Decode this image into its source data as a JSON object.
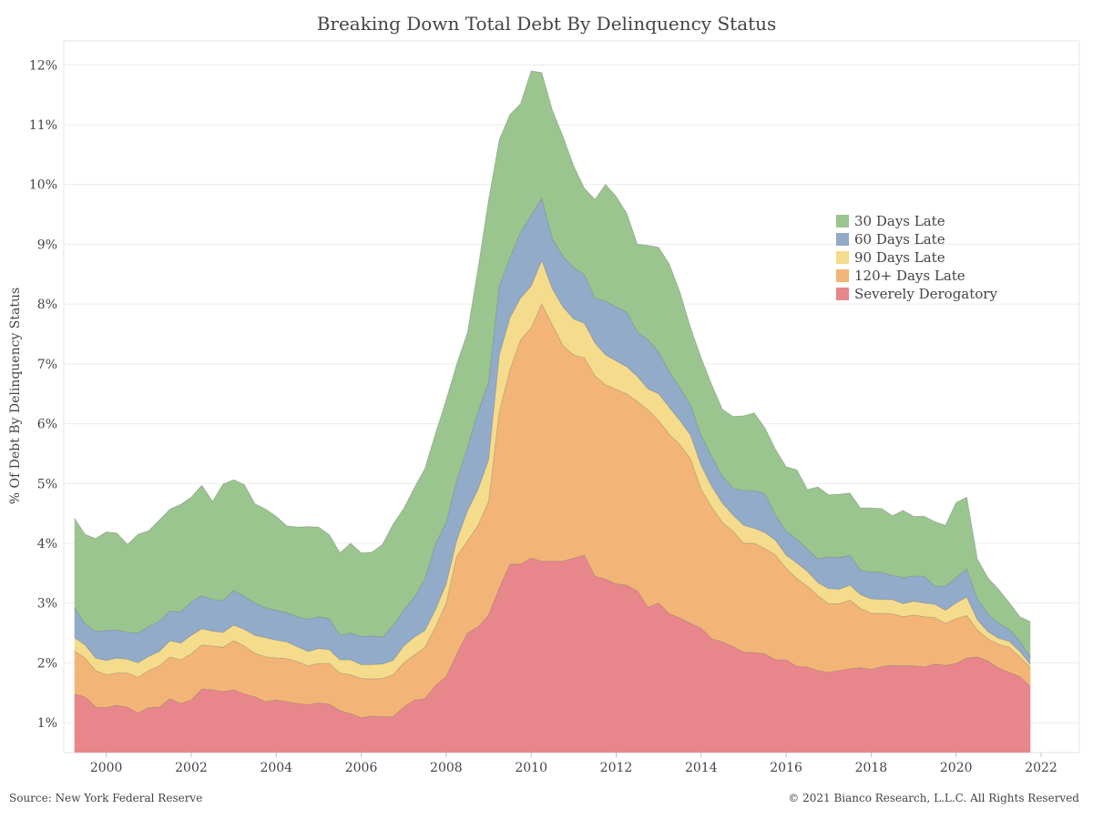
{
  "title": "Breaking Down Total Debt By Delinquency Status",
  "source": "Source: New York Federal Reserve",
  "copyright": "© 2021 Bianco Research, L.L.C. All Rights Reserved",
  "chart_data": {
    "type": "area",
    "stacked": true,
    "title": "Breaking Down Total Debt By Delinquency Status",
    "xlabel": "",
    "ylabel": "% Of Debt By Delinquency Status",
    "xlim": [
      1999.0,
      2022.9
    ],
    "ylim": [
      0.5,
      12.4
    ],
    "x_ticks": [
      "2000",
      "2002",
      "2004",
      "2006",
      "2008",
      "2010",
      "2012",
      "2014",
      "2016",
      "2018",
      "2020",
      "2022"
    ],
    "y_ticks": [
      "1%",
      "2%",
      "3%",
      "4%",
      "5%",
      "6%",
      "7%",
      "8%",
      "9%",
      "10%",
      "11%",
      "12%"
    ],
    "grid": true,
    "legend_position": "center-right",
    "x": [
      1999.25,
      1999.5,
      1999.75,
      2000.0,
      2000.25,
      2000.5,
      2000.75,
      2001.0,
      2001.25,
      2001.5,
      2001.75,
      2002.0,
      2002.25,
      2002.5,
      2002.75,
      2003.0,
      2003.25,
      2003.5,
      2003.75,
      2004.0,
      2004.25,
      2004.5,
      2004.75,
      2005.0,
      2005.25,
      2005.5,
      2005.75,
      2006.0,
      2006.25,
      2006.5,
      2006.75,
      2007.0,
      2007.25,
      2007.5,
      2007.75,
      2008.0,
      2008.25,
      2008.5,
      2008.75,
      2009.0,
      2009.25,
      2009.5,
      2009.75,
      2010.0,
      2010.25,
      2010.5,
      2010.75,
      2011.0,
      2011.25,
      2011.5,
      2011.75,
      2012.0,
      2012.25,
      2012.5,
      2012.75,
      2013.0,
      2013.25,
      2013.5,
      2013.75,
      2014.0,
      2014.25,
      2014.5,
      2014.75,
      2015.0,
      2015.25,
      2015.5,
      2015.75,
      2016.0,
      2016.25,
      2016.5,
      2016.75,
      2017.0,
      2017.25,
      2017.5,
      2017.75,
      2018.0,
      2018.25,
      2018.5,
      2018.75,
      2019.0,
      2019.25,
      2019.5,
      2019.75,
      2020.0,
      2020.25,
      2020.5,
      2020.75,
      2021.0,
      2021.25,
      2021.5,
      2021.75
    ],
    "series": [
      {
        "name": "Severely Derogatory",
        "color": "#e8878b",
        "values": [
          1.48,
          1.43,
          1.26,
          1.25,
          1.29,
          1.26,
          1.16,
          1.25,
          1.26,
          1.4,
          1.32,
          1.38,
          1.56,
          1.55,
          1.52,
          1.55,
          1.48,
          1.43,
          1.35,
          1.38,
          1.35,
          1.32,
          1.3,
          1.33,
          1.31,
          1.2,
          1.15,
          1.08,
          1.11,
          1.1,
          1.1,
          1.26,
          1.38,
          1.4,
          1.62,
          1.77,
          2.15,
          2.5,
          2.6,
          2.8,
          3.25,
          3.65,
          3.65,
          3.75,
          3.7,
          3.7,
          3.7,
          3.75,
          3.8,
          3.45,
          3.4,
          3.32,
          3.3,
          3.2,
          2.93,
          3.0,
          2.82,
          2.75,
          2.66,
          2.58,
          2.4,
          2.35,
          2.27,
          2.18,
          2.17,
          2.15,
          2.05,
          2.05,
          1.94,
          1.93,
          1.87,
          1.84,
          1.87,
          1.9,
          1.92,
          1.89,
          1.94,
          1.96,
          1.95,
          1.95,
          1.93,
          1.98,
          1.96,
          1.99,
          2.08,
          2.1,
          2.03,
          1.91,
          1.84,
          1.77,
          1.6
        ]
      },
      {
        "name": "120+ Days Late",
        "color": "#f3b577",
        "values": [
          0.72,
          0.65,
          0.61,
          0.55,
          0.54,
          0.57,
          0.6,
          0.62,
          0.69,
          0.7,
          0.73,
          0.77,
          0.74,
          0.73,
          0.74,
          0.82,
          0.8,
          0.73,
          0.75,
          0.7,
          0.72,
          0.7,
          0.65,
          0.66,
          0.68,
          0.63,
          0.65,
          0.66,
          0.62,
          0.64,
          0.7,
          0.74,
          0.75,
          0.86,
          0.98,
          1.23,
          1.63,
          1.54,
          1.7,
          1.9,
          2.95,
          3.25,
          3.75,
          3.85,
          4.3,
          3.95,
          3.6,
          3.4,
          3.3,
          3.35,
          3.25,
          3.25,
          3.2,
          3.17,
          3.3,
          3.05,
          3.0,
          2.9,
          2.75,
          2.32,
          2.2,
          2.0,
          1.93,
          1.82,
          1.83,
          1.76,
          1.75,
          1.53,
          1.47,
          1.35,
          1.25,
          1.15,
          1.12,
          1.15,
          0.99,
          0.94,
          0.89,
          0.86,
          0.82,
          0.85,
          0.84,
          0.78,
          0.7,
          0.75,
          0.71,
          0.45,
          0.37,
          0.4,
          0.42,
          0.33,
          0.32
        ]
      },
      {
        "name": "90 Days Late",
        "color": "#f5dc8c",
        "values": [
          0.22,
          0.22,
          0.21,
          0.24,
          0.25,
          0.23,
          0.24,
          0.24,
          0.24,
          0.27,
          0.28,
          0.31,
          0.27,
          0.25,
          0.25,
          0.26,
          0.28,
          0.3,
          0.32,
          0.3,
          0.28,
          0.25,
          0.24,
          0.25,
          0.23,
          0.22,
          0.25,
          0.23,
          0.24,
          0.24,
          0.24,
          0.28,
          0.3,
          0.28,
          0.29,
          0.32,
          0.27,
          0.5,
          0.6,
          0.7,
          0.95,
          0.87,
          0.7,
          0.7,
          0.73,
          0.6,
          0.65,
          0.6,
          0.58,
          0.55,
          0.5,
          0.48,
          0.45,
          0.42,
          0.35,
          0.45,
          0.45,
          0.4,
          0.4,
          0.4,
          0.35,
          0.32,
          0.27,
          0.3,
          0.25,
          0.27,
          0.25,
          0.22,
          0.26,
          0.25,
          0.22,
          0.25,
          0.24,
          0.25,
          0.23,
          0.24,
          0.23,
          0.24,
          0.22,
          0.23,
          0.23,
          0.22,
          0.22,
          0.26,
          0.31,
          0.17,
          0.12,
          0.1,
          0.1,
          0.09,
          0.05
        ]
      },
      {
        "name": "60 Days Late",
        "color": "#92abc9",
        "values": [
          0.5,
          0.35,
          0.45,
          0.5,
          0.47,
          0.45,
          0.5,
          0.5,
          0.5,
          0.5,
          0.52,
          0.56,
          0.55,
          0.53,
          0.53,
          0.58,
          0.55,
          0.54,
          0.5,
          0.5,
          0.49,
          0.5,
          0.54,
          0.53,
          0.52,
          0.41,
          0.45,
          0.47,
          0.48,
          0.45,
          0.58,
          0.6,
          0.67,
          0.86,
          1.1,
          1.03,
          1.0,
          1.06,
          1.3,
          1.3,
          1.15,
          1.0,
          1.1,
          1.18,
          1.04,
          0.84,
          0.85,
          0.86,
          0.81,
          0.75,
          0.9,
          0.9,
          0.92,
          0.74,
          0.82,
          0.7,
          0.6,
          0.55,
          0.5,
          0.5,
          0.5,
          0.45,
          0.45,
          0.58,
          0.63,
          0.65,
          0.42,
          0.4,
          0.4,
          0.37,
          0.4,
          0.53,
          0.53,
          0.5,
          0.41,
          0.45,
          0.45,
          0.4,
          0.44,
          0.42,
          0.45,
          0.3,
          0.4,
          0.43,
          0.47,
          0.35,
          0.3,
          0.25,
          0.2,
          0.18,
          0.12
        ]
      },
      {
        "name": "30 Days Late",
        "color": "#9bc58f",
        "values": [
          1.5,
          1.5,
          1.55,
          1.65,
          1.62,
          1.47,
          1.65,
          1.6,
          1.7,
          1.7,
          1.8,
          1.75,
          1.85,
          1.64,
          1.95,
          1.85,
          1.87,
          1.66,
          1.65,
          1.57,
          1.45,
          1.5,
          1.55,
          1.5,
          1.4,
          1.38,
          1.5,
          1.4,
          1.4,
          1.55,
          1.7,
          1.7,
          1.83,
          1.85,
          1.85,
          2.05,
          1.95,
          1.92,
          2.4,
          3.05,
          2.45,
          2.4,
          2.15,
          2.42,
          2.1,
          2.15,
          2.0,
          1.7,
          1.45,
          1.65,
          1.95,
          1.85,
          1.65,
          1.47,
          1.58,
          1.75,
          1.8,
          1.6,
          1.3,
          1.3,
          1.2,
          1.12,
          1.2,
          1.25,
          1.3,
          1.1,
          1.1,
          1.08,
          1.16,
          1.0,
          1.2,
          1.04,
          1.06,
          1.04,
          1.04,
          1.07,
          1.07,
          1.0,
          1.12,
          1.0,
          1.0,
          1.08,
          1.02,
          1.25,
          1.2,
          0.67,
          0.6,
          0.57,
          0.45,
          0.4,
          0.6
        ]
      }
    ]
  }
}
